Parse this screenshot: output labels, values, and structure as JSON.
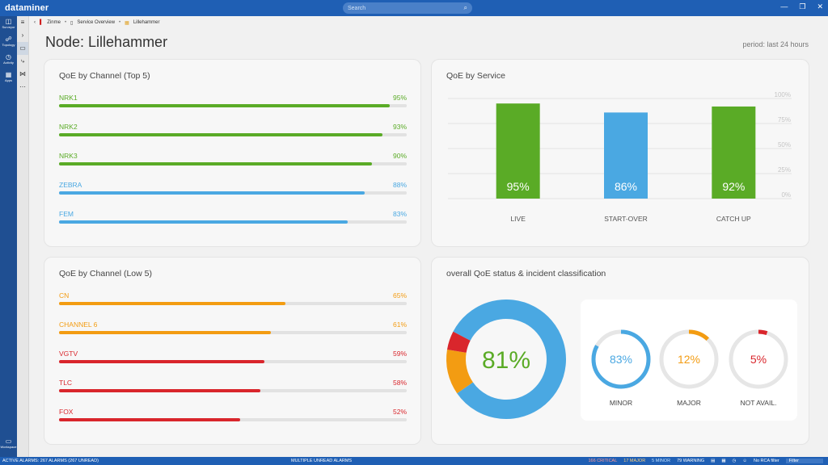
{
  "app": {
    "logo": "dataminer",
    "search_placeholder": "Search"
  },
  "rail": [
    {
      "label": "Surveyor",
      "icon": "surveyor-icon",
      "glyph": "◫"
    },
    {
      "label": "Topology",
      "icon": "topology-icon",
      "glyph": "☍"
    },
    {
      "label": "Activity",
      "icon": "activity-icon",
      "glyph": "◷"
    },
    {
      "label": "Apps",
      "icon": "apps-icon",
      "glyph": "▦"
    }
  ],
  "rail_bottom": {
    "label": "Workspace",
    "icon": "workspace-icon",
    "glyph": "▭"
  },
  "breadcrumb": [
    "Zinme",
    "Service Overview",
    "Lillehammer"
  ],
  "page": {
    "title": "Node: Lillehammer",
    "period": "period: last 24 hours"
  },
  "colors": {
    "green": "#5aab26",
    "blue": "#4aa8e2",
    "orange": "#f39c12",
    "red": "#d9262c",
    "track": "#e2e2e2"
  },
  "top5": {
    "title": "QoE by Channel (Top 5)",
    "items": [
      {
        "name": "NRK1",
        "value": "95%",
        "pct": 95,
        "color": "green"
      },
      {
        "name": "NRK2",
        "value": "93%",
        "pct": 93,
        "color": "green"
      },
      {
        "name": "NRK3",
        "value": "90%",
        "pct": 90,
        "color": "green"
      },
      {
        "name": "ZEBRA",
        "value": "88%",
        "pct": 88,
        "color": "blue"
      },
      {
        "name": "FEM",
        "value": "83%",
        "pct": 83,
        "color": "blue"
      }
    ]
  },
  "low5": {
    "title": "QoE by Channel (Low 5)",
    "items": [
      {
        "name": "CN",
        "value": "65%",
        "pct": 65,
        "color": "orange"
      },
      {
        "name": "CHANNEL 6",
        "value": "61%",
        "pct": 61,
        "color": "orange"
      },
      {
        "name": "VGTV",
        "value": "59%",
        "pct": 59,
        "color": "red"
      },
      {
        "name": "TLC",
        "value": "58%",
        "pct": 58,
        "color": "red"
      },
      {
        "name": "FOX",
        "value": "52%",
        "pct": 52,
        "color": "red"
      }
    ]
  },
  "service": {
    "title": "QoE by Service"
  },
  "chart_data": {
    "type": "bar",
    "categories": [
      "LIVE",
      "START-OVER",
      "CATCH UP"
    ],
    "values": [
      95,
      86,
      92
    ],
    "value_labels": [
      "95%",
      "86%",
      "92%"
    ],
    "bar_colors": [
      "#5aab26",
      "#4aa8e2",
      "#5aab26"
    ],
    "y_ticks": [
      "100%",
      "75%",
      "50%",
      "25%",
      "0%"
    ],
    "ylim": [
      0,
      100
    ],
    "grid": true
  },
  "overall": {
    "title": "overall QoE status & incident classification",
    "donut_value": "81%",
    "donut_segments": [
      {
        "pct": 81,
        "color": "blue"
      },
      {
        "pct": 12,
        "color": "orange"
      },
      {
        "pct": 5,
        "color": "red"
      }
    ],
    "gauges": [
      {
        "label": "MINOR",
        "value": "83%",
        "pct": 83,
        "color": "blue"
      },
      {
        "label": "MAJOR",
        "value": "12%",
        "pct": 12,
        "color": "orange"
      },
      {
        "label": "NOT AVAIL.",
        "value": "5%",
        "pct": 5,
        "color": "red"
      }
    ]
  },
  "statusbar": {
    "left": "ACTIVE ALARMS: 267 ALARMS (267 UNREAD)",
    "mid": "MULTIPLE UNREAD ALARMS",
    "critical": "166 CRITICAL",
    "major": "17 MAJOR",
    "minor": "5 MINOR",
    "warning": "79 WARNING",
    "rca": "No RCA filter",
    "filter_placeholder": "Filter"
  }
}
